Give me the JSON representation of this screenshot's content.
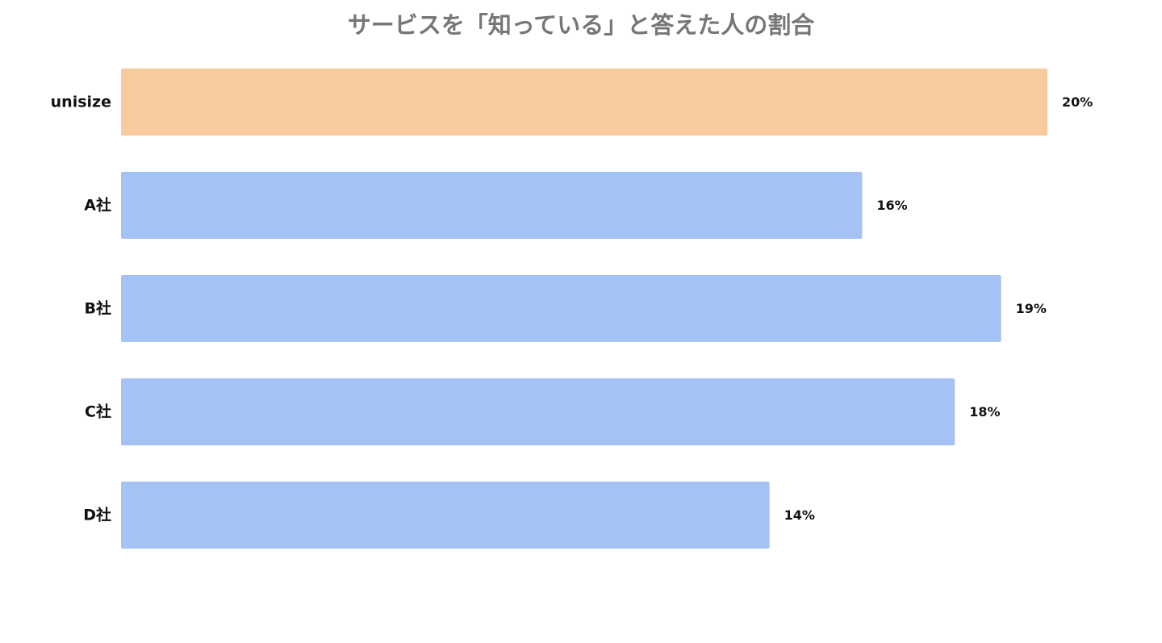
{
  "chart_data": {
    "type": "bar",
    "orientation": "horizontal",
    "title": "サービスを「知っている」と答えた人の割合",
    "categories": [
      "unisize",
      "A社",
      "B社",
      "C社",
      "D社"
    ],
    "values": [
      20,
      16,
      19,
      18,
      14
    ],
    "value_labels": [
      "20%",
      "16%",
      "19%",
      "18%",
      "14%"
    ],
    "xlim": [
      0,
      20
    ],
    "grid": false,
    "legend": "none",
    "colors": {
      "highlight": "#f8cb9e",
      "default": "#a4c2f4",
      "title": "#767676",
      "labels": "#111111"
    }
  }
}
